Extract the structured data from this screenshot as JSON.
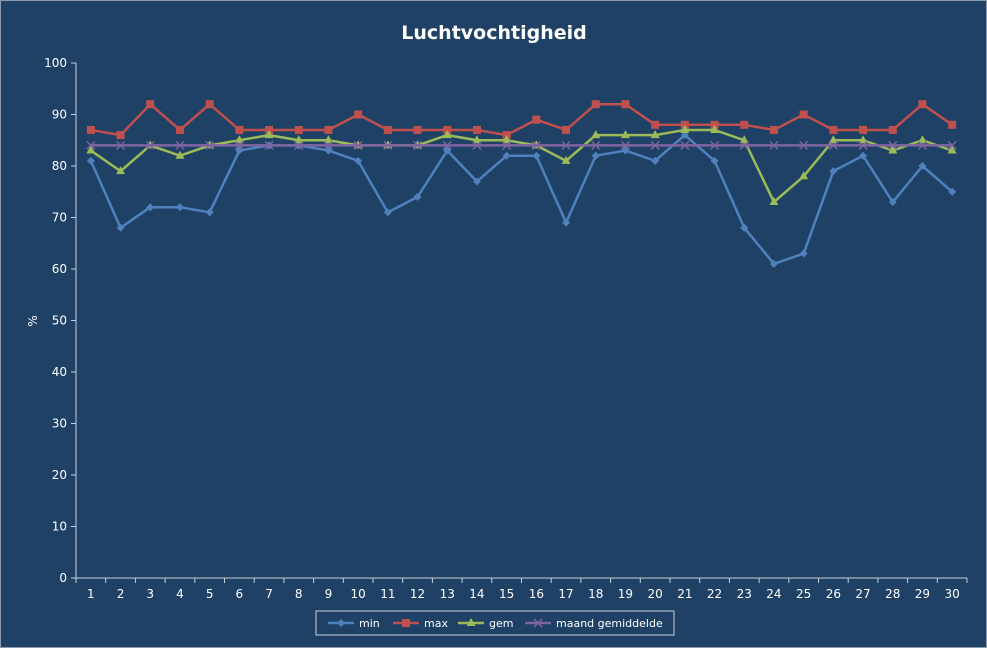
{
  "chart_data": {
    "type": "line",
    "title": "Luchtvochtigheid",
    "xlabel": "",
    "ylabel": "%",
    "ylim": [
      0,
      100
    ],
    "yticks": [
      0,
      10,
      20,
      30,
      40,
      50,
      60,
      70,
      80,
      90,
      100
    ],
    "x": [
      1,
      2,
      3,
      4,
      5,
      6,
      7,
      8,
      9,
      10,
      11,
      12,
      13,
      14,
      15,
      16,
      17,
      18,
      19,
      20,
      21,
      22,
      23,
      24,
      25,
      26,
      27,
      28,
      29,
      30
    ],
    "grid": false,
    "legend_position": "bottom",
    "series": [
      {
        "name": "min",
        "color": "#4f81bd",
        "marker": "diamond",
        "values": [
          81,
          68,
          72,
          72,
          71,
          83,
          84,
          84,
          83,
          81,
          71,
          74,
          83,
          77,
          82,
          82,
          69,
          82,
          83,
          81,
          86,
          81,
          68,
          61,
          63,
          79,
          82,
          73,
          80,
          75
        ]
      },
      {
        "name": "max",
        "color": "#c0504d",
        "marker": "square",
        "values": [
          87,
          86,
          92,
          87,
          92,
          87,
          87,
          87,
          87,
          90,
          87,
          87,
          87,
          87,
          86,
          89,
          87,
          92,
          92,
          88,
          88,
          88,
          88,
          87,
          90,
          87,
          87,
          87,
          92,
          88
        ]
      },
      {
        "name": "gem",
        "color": "#9bbb59",
        "marker": "triangle",
        "values": [
          83,
          79,
          84,
          82,
          84,
          85,
          86,
          85,
          85,
          84,
          84,
          84,
          86,
          85,
          85,
          84,
          81,
          86,
          86,
          86,
          87,
          87,
          85,
          73,
          78,
          85,
          85,
          83,
          85,
          83
        ]
      },
      {
        "name": "maand gemiddelde",
        "color": "#8064a2",
        "marker": "x",
        "values": [
          84,
          84,
          84,
          84,
          84,
          84,
          84,
          84,
          84,
          84,
          84,
          84,
          84,
          84,
          84,
          84,
          84,
          84,
          84,
          84,
          84,
          84,
          84,
          84,
          84,
          84,
          84,
          84,
          84,
          84
        ]
      }
    ]
  }
}
